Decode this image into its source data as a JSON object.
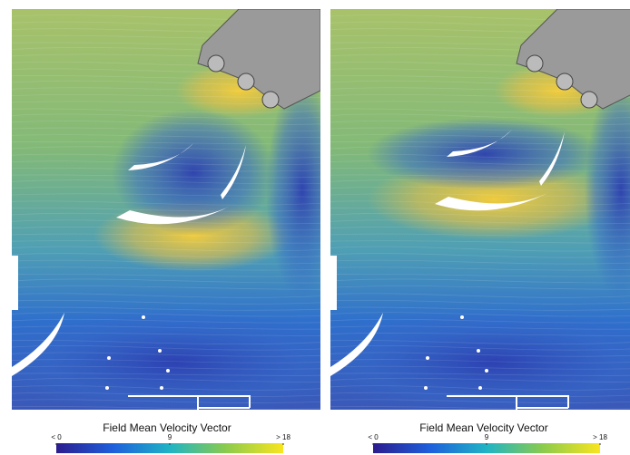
{
  "panels": [
    {
      "colorbar": {
        "title": "Field Mean Velocity Vector",
        "lim": [
          0,
          18
        ],
        "ticks": [
          {
            "value": 0,
            "label": "< 0"
          },
          9,
          {
            "value": 18,
            "label": "> 18"
          }
        ]
      }
    },
    {
      "colorbar": {
        "title": "Field Mean Velocity Vector",
        "lim": [
          0,
          18
        ],
        "ticks": [
          {
            "value": 0,
            "label": "< 0"
          },
          9,
          {
            "value": 18,
            "label": "> 18"
          }
        ]
      }
    }
  ]
}
